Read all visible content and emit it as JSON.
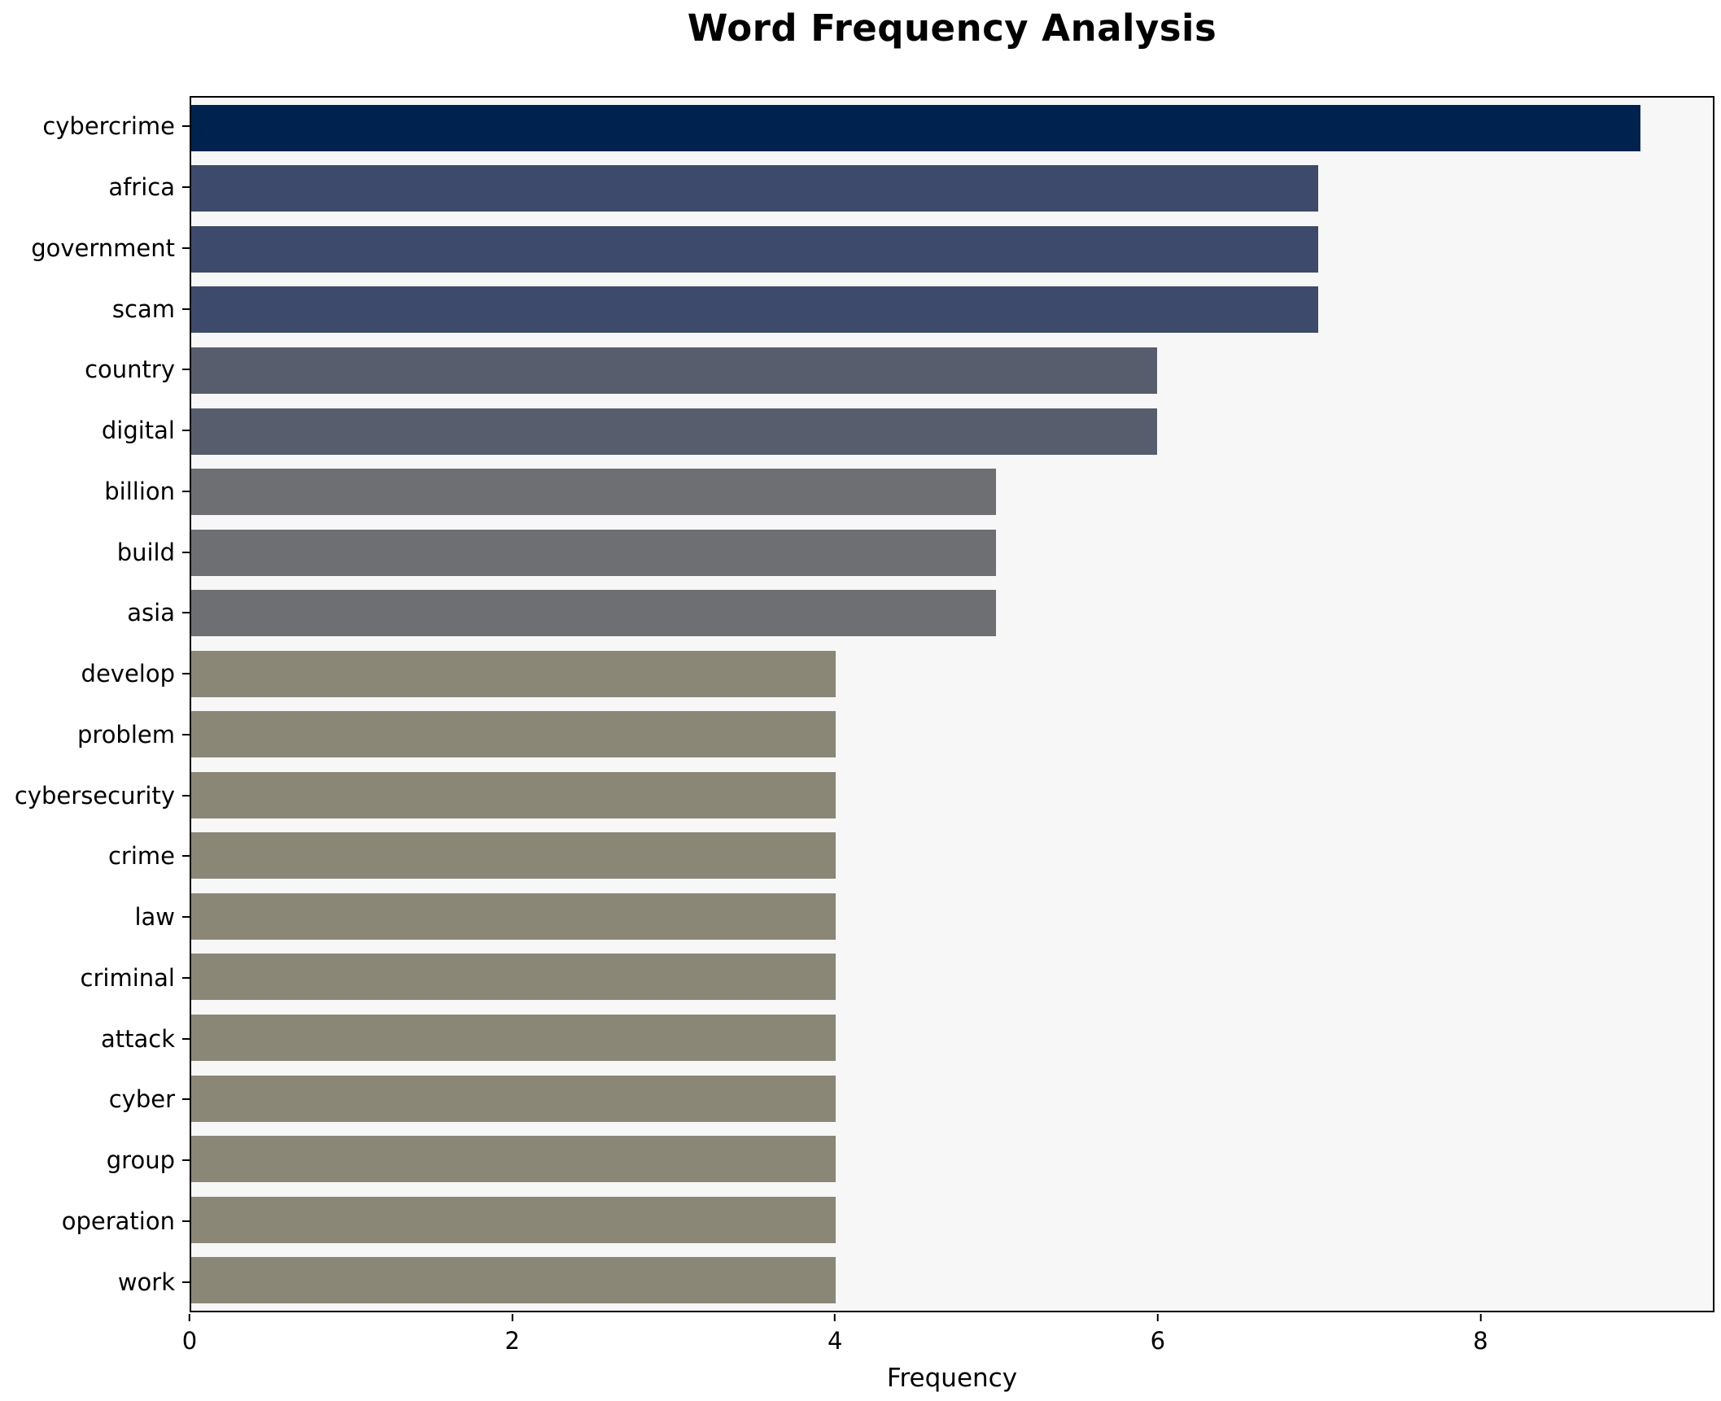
{
  "chart_data": {
    "type": "bar",
    "orientation": "horizontal",
    "title": "Word Frequency Analysis",
    "xlabel": "Frequency",
    "ylabel": "",
    "categories": [
      "cybercrime",
      "africa",
      "government",
      "scam",
      "country",
      "digital",
      "billion",
      "build",
      "asia",
      "develop",
      "problem",
      "cybersecurity",
      "crime",
      "law",
      "criminal",
      "attack",
      "cyber",
      "group",
      "operation",
      "work"
    ],
    "values": [
      9,
      7,
      7,
      7,
      6,
      6,
      5,
      5,
      5,
      4,
      4,
      4,
      4,
      4,
      4,
      4,
      4,
      4,
      4,
      4
    ],
    "bar_colors": [
      "#00224e",
      "#3d4a6c",
      "#3d4a6c",
      "#3d4a6c",
      "#575d6d",
      "#575d6d",
      "#6e6f72",
      "#6e6f72",
      "#6e6f72",
      "#8a8777",
      "#8a8777",
      "#8a8777",
      "#8a8777",
      "#8a8777",
      "#8a8777",
      "#8a8777",
      "#8a8777",
      "#8a8777",
      "#8a8777",
      "#8a8777"
    ],
    "xticks": [
      "0",
      "2",
      "4",
      "6",
      "8"
    ],
    "xtick_values": [
      0,
      2,
      4,
      6,
      8
    ],
    "xlim": [
      0,
      9.45
    ],
    "grid": false,
    "legend": "none",
    "plot_background": "#f7f7f7",
    "figure_background": "#ffffff",
    "frame_color": "#000000"
  }
}
